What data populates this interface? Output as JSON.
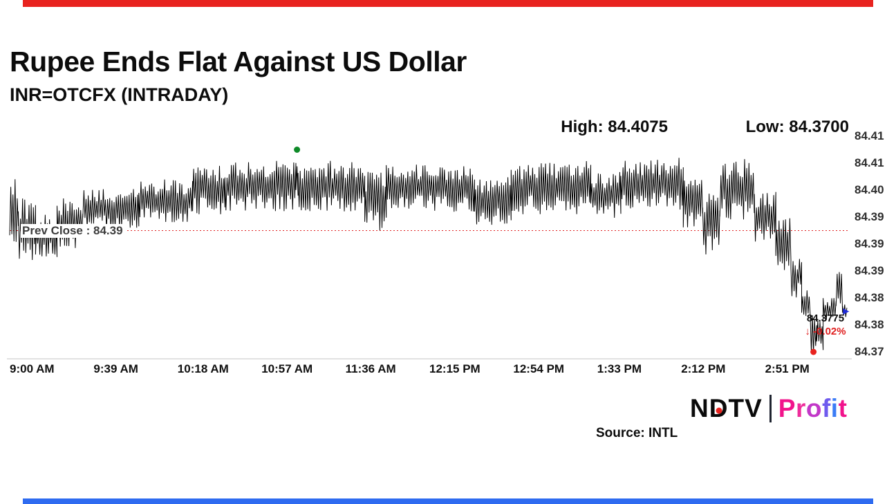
{
  "theme": {
    "top_bar_color": "#e8231f",
    "bottom_bar_color": "#2e6bf0",
    "line_color": "#000000",
    "prev_close_line_color": "#e02020",
    "change_color": "#e02020",
    "ndtv_dot_color": "#e8231f"
  },
  "header": {
    "title": "Rupee Ends Flat Against US Dollar",
    "subtitle": "INR=OTCFX (INTRADAY)"
  },
  "footer": {
    "source": "Source: INTL",
    "logo": {
      "ndtv_letters": [
        "N",
        "D",
        "T",
        "V"
      ],
      "profit_letters": [
        {
          "ch": "P",
          "color": "#f1148c"
        },
        {
          "ch": "r",
          "color": "#ee2d9b"
        },
        {
          "ch": "o",
          "color": "#c238c8"
        },
        {
          "ch": "f",
          "color": "#6f5bee"
        },
        {
          "ch": "i",
          "color": "#3b7cf6"
        },
        {
          "ch": "t",
          "color": "#f1148c"
        }
      ]
    }
  },
  "chart_data": {
    "type": "line",
    "instrument": "INR=OTCFX",
    "interval": "INTRADAY",
    "high_label": "High: 84.4075",
    "low_label": "Low: 84.3700",
    "high": 84.4075,
    "low": 84.37,
    "prev_close": 84.39,
    "prev_close_label": "Prev Close : 84.39",
    "prev_close_line_value": 84.3925,
    "last_price": 84.3775,
    "last_price_label": "84.3775",
    "change_label": "↓ -0.02%",
    "change_percent": -0.02,
    "x_ticks": [
      "9:00 AM",
      "9:39 AM",
      "10:18 AM",
      "10:57 AM",
      "11:36 AM",
      "12:15 PM",
      "12:54 PM",
      "1:33 PM",
      "2:12 PM",
      "2:51 PM"
    ],
    "x_tick_minutes": [
      0,
      39,
      78,
      117,
      156,
      195,
      234,
      273,
      312,
      351
    ],
    "y_axis_labels": [
      "84.41",
      "84.41",
      "84.40",
      "84.39",
      "84.39",
      "84.39",
      "84.38",
      "84.38",
      "84.37"
    ],
    "y_tick_values": [
      84.41,
      84.405,
      84.4,
      84.395,
      84.39,
      84.385,
      84.38,
      84.375,
      84.37
    ],
    "time_domain_minutes": [
      0,
      390
    ],
    "value_domain": [
      84.369,
      84.4125
    ],
    "markers": {
      "high_point": {
        "t": 133.5,
        "value": 84.4075,
        "color": "#0e8a28"
      },
      "low_point": {
        "t": 373.5,
        "value": 84.37,
        "color": "#e8231f"
      },
      "last_point": {
        "t": 388.5,
        "value": 84.3775,
        "color": "#1f2bd8"
      }
    },
    "envelope": [
      [
        0,
        4,
        84.3895,
        84.4025
      ],
      [
        4,
        12,
        84.387,
        84.3985
      ],
      [
        12,
        22,
        84.3875,
        84.3955
      ],
      [
        22,
        34,
        84.389,
        84.3985
      ],
      [
        34,
        60,
        84.3925,
        84.4005
      ],
      [
        60,
        85,
        84.394,
        84.402
      ],
      [
        85,
        100,
        84.3955,
        84.4045
      ],
      [
        100,
        133,
        84.396,
        84.4055
      ],
      [
        133,
        134,
        84.399,
        84.4072
      ],
      [
        134,
        165,
        84.396,
        84.4055
      ],
      [
        165,
        175,
        84.3925,
        84.4035
      ],
      [
        175,
        216,
        84.396,
        84.405
      ],
      [
        216,
        233,
        84.3935,
        84.4025
      ],
      [
        233,
        270,
        84.3955,
        84.4055
      ],
      [
        270,
        284,
        84.3945,
        84.4035
      ],
      [
        284,
        313,
        84.396,
        84.406
      ],
      [
        313,
        322,
        84.393,
        84.402
      ],
      [
        322,
        330,
        84.388,
        84.4
      ],
      [
        330,
        346,
        84.3945,
        84.406
      ],
      [
        346,
        356,
        84.3895,
        84.4005
      ],
      [
        356,
        363,
        84.385,
        84.395
      ],
      [
        363,
        368,
        84.38,
        84.388
      ],
      [
        368,
        372,
        84.376,
        84.3815
      ],
      [
        372,
        375,
        84.3697,
        84.377
      ],
      [
        375,
        378,
        84.37,
        84.376
      ],
      [
        378,
        384,
        84.3755,
        84.38
      ],
      [
        384,
        387,
        84.377,
        84.3855
      ],
      [
        387,
        389,
        84.376,
        84.379
      ]
    ]
  }
}
